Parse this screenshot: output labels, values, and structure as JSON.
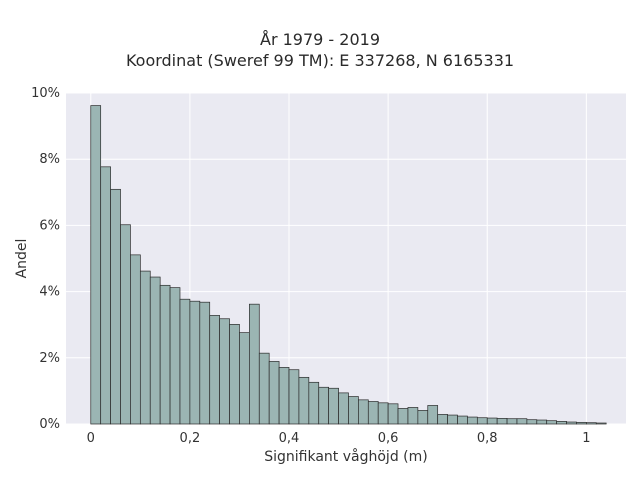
{
  "chart_data": {
    "type": "bar",
    "title": "År 1979 - 2019",
    "subtitle": "Koordinat (Sweref 99 TM): E 337268, N 6165331",
    "xlabel": "Signifikant våghöjd (m)",
    "ylabel": "Andel",
    "bin_width": 0.02,
    "bin_start": 0.0,
    "xlim": [
      -0.05,
      1.08
    ],
    "ylim": [
      0,
      0.1
    ],
    "x_ticks": [
      0,
      0.2,
      0.4,
      0.6,
      0.8,
      1
    ],
    "x_tick_labels": [
      "0",
      "0,2",
      "0,4",
      "0,6",
      "0,8",
      "1"
    ],
    "y_ticks": [
      0,
      0.02,
      0.04,
      0.06,
      0.08,
      0.1
    ],
    "y_tick_labels": [
      "0%",
      "2%",
      "4%",
      "6%",
      "8%",
      "10%"
    ],
    "values": [
      0.0962,
      0.0777,
      0.0709,
      0.0602,
      0.0511,
      0.0462,
      0.0444,
      0.0419,
      0.0412,
      0.0377,
      0.0371,
      0.0368,
      0.0328,
      0.0318,
      0.0301,
      0.0276,
      0.0362,
      0.0214,
      0.0189,
      0.0171,
      0.0164,
      0.0141,
      0.0126,
      0.0111,
      0.0108,
      0.0094,
      0.0083,
      0.0073,
      0.0068,
      0.0064,
      0.0061,
      0.0047,
      0.005,
      0.0041,
      0.0056,
      0.0029,
      0.0027,
      0.0024,
      0.0021,
      0.0019,
      0.0018,
      0.0017,
      0.0016,
      0.0016,
      0.0013,
      0.0012,
      0.001,
      0.0008,
      0.0006,
      0.0005,
      0.0004,
      0.0003
    ],
    "bar_color": "#9bb5b3",
    "bar_edge_color": "#2b2b2b",
    "background_color": "#eaeaf2",
    "grid": true
  }
}
